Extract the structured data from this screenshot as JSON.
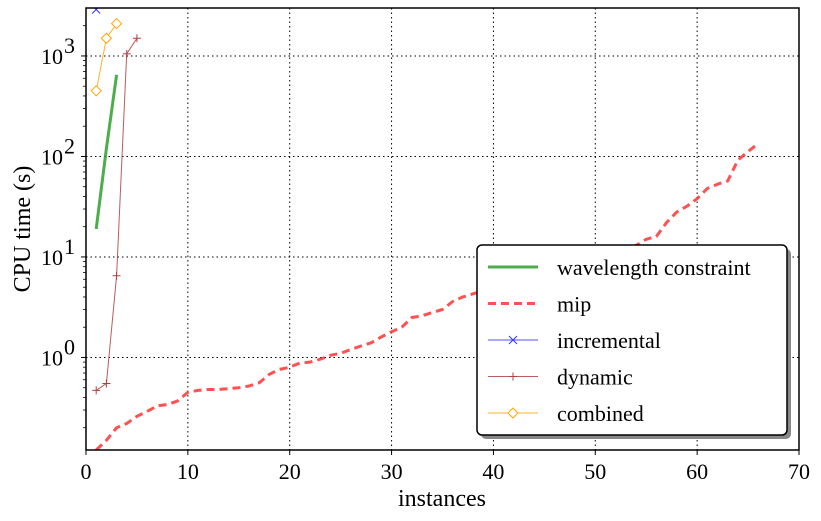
{
  "chart_data": {
    "type": "line",
    "xlabel": "instances",
    "ylabel": "CPU time (s)",
    "xlim": [
      0,
      70
    ],
    "ylim": [
      0.12,
      3000
    ],
    "yscale": "log",
    "grid": true,
    "legend_position": "lower-right",
    "x_ticks": [
      0,
      10,
      20,
      30,
      40,
      50,
      60,
      70
    ],
    "x_tick_labels": [
      "0",
      "10",
      "20",
      "30",
      "40",
      "50",
      "60",
      "70"
    ],
    "y_ticks": [
      1,
      10,
      100,
      1000
    ],
    "y_tick_labels": [
      {
        "base": "10",
        "exp": "0"
      },
      {
        "base": "10",
        "exp": "1"
      },
      {
        "base": "10",
        "exp": "2"
      },
      {
        "base": "10",
        "exp": "3"
      }
    ],
    "series": [
      {
        "name": "wavelength constraint",
        "color": "#2ca02c",
        "style": "solid",
        "marker": "none",
        "x": [
          1,
          2,
          3
        ],
        "y": [
          19,
          120,
          650
        ]
      },
      {
        "name": "mip",
        "color": "#ff3333",
        "style": "dashed",
        "marker": "none",
        "x": [
          1,
          2,
          3,
          4,
          5,
          6,
          7,
          8,
          9,
          10,
          11,
          12,
          13,
          14,
          15,
          16,
          17,
          18,
          19,
          20,
          21,
          22,
          23,
          24,
          25,
          26,
          27,
          28,
          29,
          30,
          31,
          32,
          33,
          34,
          35,
          36,
          37,
          38,
          39,
          40,
          41,
          42,
          43,
          44,
          45,
          46,
          47,
          48,
          49,
          50,
          51,
          52,
          53,
          54,
          55,
          56,
          57,
          58,
          59,
          60,
          61,
          62,
          63,
          64,
          65,
          66
        ],
        "y": [
          0.12,
          0.15,
          0.2,
          0.22,
          0.26,
          0.29,
          0.33,
          0.34,
          0.37,
          0.45,
          0.47,
          0.48,
          0.48,
          0.49,
          0.5,
          0.52,
          0.56,
          0.68,
          0.76,
          0.8,
          0.88,
          0.9,
          0.96,
          1.05,
          1.1,
          1.2,
          1.3,
          1.4,
          1.6,
          1.8,
          2.0,
          2.5,
          2.6,
          2.8,
          3.0,
          3.6,
          4.0,
          4.3,
          4.6,
          4.9,
          5.2,
          5.5,
          5.9,
          6.3,
          6.8,
          7.3,
          7.8,
          8.4,
          9.0,
          9.8,
          10.5,
          11.0,
          12.0,
          13.0,
          15.0,
          16.0,
          22.0,
          28.0,
          32.0,
          38.0,
          48.0,
          53.0,
          57.0,
          92.0,
          112.0,
          135.0
        ]
      },
      {
        "name": "incremental",
        "color": "#3333ff",
        "style": "solid",
        "marker": "x",
        "x": [
          1
        ],
        "y": [
          2900
        ]
      },
      {
        "name": "dynamic",
        "color": "#b04040",
        "style": "solid",
        "marker": "+",
        "x": [
          1,
          2,
          3,
          4,
          5
        ],
        "y": [
          0.47,
          0.55,
          6.5,
          1050,
          1500
        ]
      },
      {
        "name": "combined",
        "color": "#ffa500",
        "style": "solid",
        "marker": "diamond",
        "x": [
          1,
          2,
          3
        ],
        "y": [
          450,
          1500,
          2100
        ]
      }
    ]
  }
}
